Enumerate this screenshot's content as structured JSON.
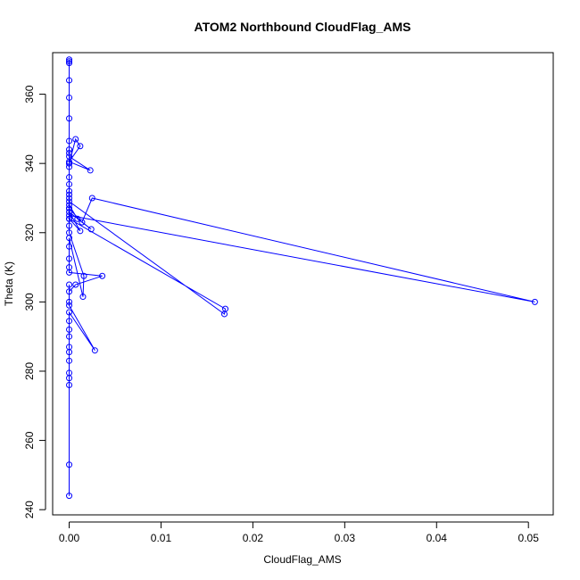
{
  "chart_data": {
    "type": "line",
    "title": "ATOM2 Northbound CloudFlag_AMS",
    "xlabel": "CloudFlag_AMS",
    "ylabel": "Theta (K)",
    "xlim": [
      -0.0018,
      0.0527
    ],
    "ylim": [
      238.5,
      372
    ],
    "x_ticks": [
      0,
      0.01,
      0.02,
      0.03,
      0.04,
      0.05
    ],
    "x_tick_labels": [
      "0.00",
      "0.01",
      "0.02",
      "0.03",
      "0.04",
      "0.05"
    ],
    "y_ticks": [
      240,
      260,
      280,
      300,
      320,
      340,
      360
    ],
    "y_tick_labels": [
      "240",
      "260",
      "280",
      "300",
      "320",
      "340",
      "360"
    ],
    "grid": false,
    "legend": "none",
    "series_color": "#0000ff",
    "series": [
      {
        "marker": "open-circle",
        "x": [
          0,
          0,
          0,
          0,
          0,
          0,
          0,
          0,
          0,
          0,
          0,
          0,
          0.0028,
          0,
          0,
          0,
          0,
          0.0007,
          0.0036,
          0,
          0,
          0,
          0,
          0,
          0.0015,
          0.0016,
          0,
          0,
          0,
          0.0012,
          0,
          0.0024,
          0.0009,
          0,
          0,
          0,
          0,
          0,
          0.0169,
          0.017,
          0,
          0,
          0.0014,
          0.0025,
          0.0507,
          0,
          0,
          0,
          0,
          0,
          0,
          0,
          0.0023,
          0,
          0.0012,
          0.0007,
          0,
          0,
          0,
          0,
          0,
          0,
          0,
          0,
          0,
          0
        ],
        "y": [
          244,
          253,
          276,
          278,
          279.5,
          283,
          285.5,
          287,
          290,
          292,
          294.5,
          297,
          286,
          299,
          300,
          305,
          303,
          305,
          307.5,
          308.5,
          310,
          312.5,
          316,
          318.5,
          301.5,
          307.5,
          320,
          322,
          324,
          320.5,
          326,
          321,
          324,
          328,
          330,
          332,
          334,
          329,
          296.5,
          298,
          324,
          327,
          323,
          330,
          300,
          325,
          327,
          331,
          336,
          339,
          340,
          342,
          338,
          340.5,
          345,
          347,
          340,
          343,
          344,
          346.5,
          353,
          359,
          364,
          369,
          369.5,
          370
        ]
      }
    ]
  }
}
